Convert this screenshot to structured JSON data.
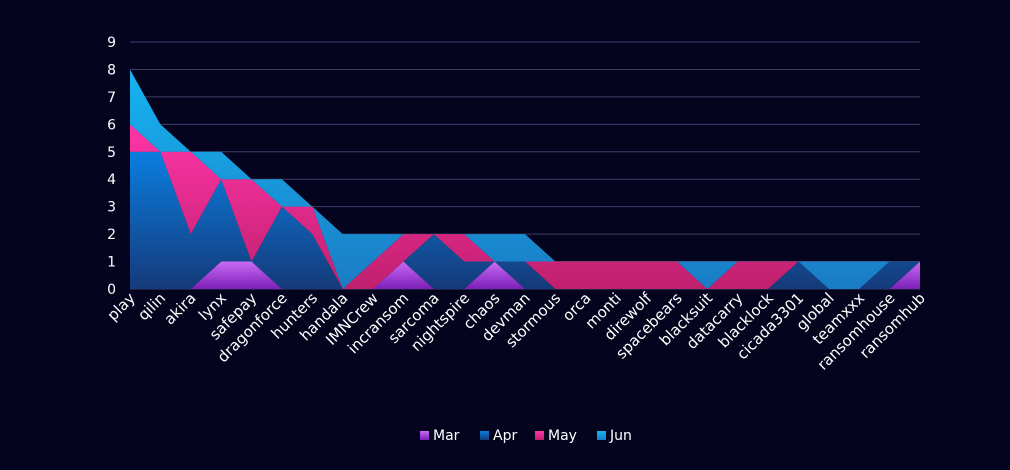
{
  "chart_data": {
    "type": "area",
    "stacked": true,
    "categories": [
      "play",
      "qilin",
      "akira",
      "lynx",
      "safepay",
      "dragonforce",
      "hunters",
      "handala",
      "IMNCrew",
      "incransom",
      "sarcoma",
      "nightspire",
      "chaos",
      "devman",
      "stormous",
      "orca",
      "monti",
      "direwolf",
      "spacebears",
      "blacksuit",
      "datacarry",
      "blacklock",
      "cicada3301",
      "global",
      "teamxxx",
      "ransomhouse",
      "ransomhub"
    ],
    "series": [
      {
        "name": "Mar",
        "color": "#b84cf0",
        "values": [
          0,
          0,
          0,
          1,
          1,
          0,
          0,
          0,
          0,
          1,
          0,
          0,
          1,
          0,
          0,
          0,
          0,
          0,
          0,
          0,
          0,
          0,
          0,
          0,
          0,
          0,
          1
        ]
      },
      {
        "name": "Apr",
        "color": "#0a6fd0",
        "values": [
          5,
          5,
          2,
          3,
          0,
          3,
          2,
          0,
          0,
          0,
          2,
          1,
          0,
          1,
          0,
          0,
          0,
          0,
          0,
          0,
          0,
          0,
          1,
          0,
          0,
          1,
          0
        ]
      },
      {
        "name": "May",
        "color": "#ff2d9c",
        "values": [
          1,
          0,
          3,
          0,
          3,
          0,
          1,
          0,
          1,
          1,
          0,
          1,
          0,
          0,
          1,
          1,
          1,
          1,
          1,
          0,
          1,
          1,
          0,
          0,
          0,
          0,
          0
        ]
      },
      {
        "name": "Jun",
        "color": "#1e9fe6",
        "values": [
          2,
          1,
          0,
          1,
          0,
          1,
          0,
          2,
          1,
          0,
          0,
          0,
          1,
          1,
          0,
          0,
          0,
          0,
          0,
          1,
          0,
          0,
          0,
          1,
          1,
          0,
          0
        ]
      }
    ],
    "ylim": [
      0,
      9
    ],
    "yticks": [
      0,
      1,
      2,
      3,
      4,
      5,
      6,
      7,
      8,
      9
    ],
    "grid": true,
    "legend_position": "bottom-center"
  }
}
